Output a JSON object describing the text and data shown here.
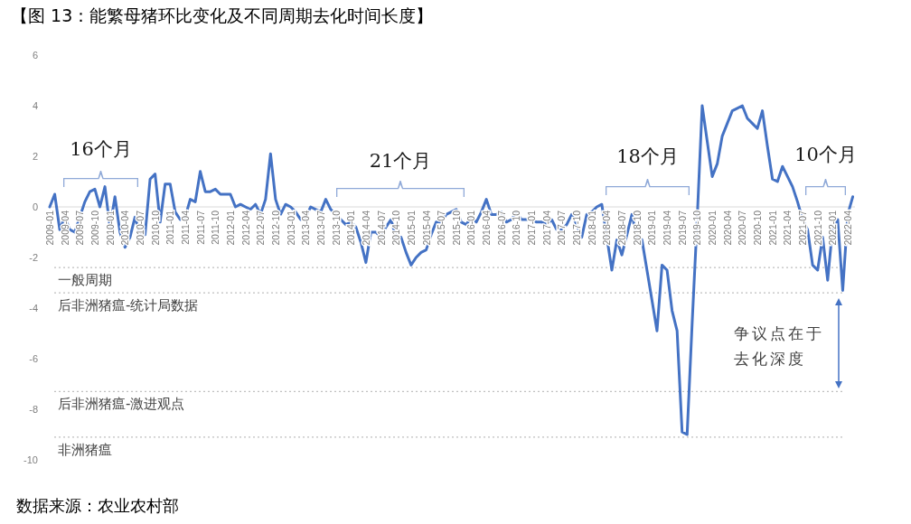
{
  "chart_data": {
    "type": "line",
    "title": "【图 13：能繁母猪环比变化及不同周期去化时间长度】",
    "categories": [
      "2009-01",
      null,
      null,
      "2009-04",
      null,
      null,
      "2009-07",
      null,
      null,
      "2009-10",
      null,
      null,
      "2010-01",
      null,
      null,
      "2010-04",
      null,
      null,
      "2010-07",
      null,
      null,
      "2010-10",
      null,
      null,
      "2011-01",
      null,
      null,
      "2011-04",
      null,
      null,
      "2011-07",
      null,
      null,
      "2011-10",
      null,
      null,
      "2012-01",
      null,
      null,
      "2012-04",
      null,
      null,
      "2012-07",
      null,
      null,
      "2012-10",
      null,
      null,
      "2013-01",
      null,
      null,
      "2013-04",
      null,
      null,
      "2013-07",
      null,
      null,
      "2013-10",
      null,
      null,
      "2014-01",
      null,
      null,
      "2014-04",
      null,
      null,
      "2014-07",
      null,
      null,
      "2014-10",
      null,
      null,
      "2015-01",
      null,
      null,
      "2015-04",
      null,
      null,
      "2015-07",
      null,
      null,
      "2015-10",
      null,
      null,
      "2016-01",
      null,
      null,
      "2016-04",
      null,
      null,
      "2016-07",
      null,
      null,
      "2016-10",
      null,
      null,
      "2017-01",
      null,
      null,
      "2017-04",
      null,
      null,
      "2017-07",
      null,
      null,
      "2017-10",
      null,
      null,
      "2018-01",
      null,
      null,
      "2018-04",
      null,
      null,
      "2018-07",
      null,
      null,
      "2018-10",
      null,
      null,
      "2019-01",
      null,
      null,
      "2019-04",
      null,
      null,
      "2019-07",
      null,
      null,
      "2019-10",
      null,
      null,
      "2020-01",
      null,
      null,
      "2020-04",
      null,
      null,
      "2020-07",
      null,
      null,
      "2020-10",
      null,
      null,
      "2021-01",
      null,
      null,
      "2021-04",
      null,
      null,
      "2021-07",
      null,
      null,
      "2021-10",
      null,
      null,
      "2022-01",
      null,
      null,
      "2022-04",
      null
    ],
    "series": [
      {
        "color": "#4472c4",
        "values": [
          0,
          0.5,
          -0.9,
          -0.4,
          -0.9,
          -1.0,
          -0.4,
          0.2,
          0.6,
          0.7,
          0,
          0.8,
          -0.8,
          0.4,
          -1.0,
          -1.6,
          -1.2,
          -0.4,
          -1.1,
          -1.1,
          1.1,
          1.3,
          -0.6,
          0.9,
          0.9,
          -0.2,
          -0.5,
          -0.4,
          0.3,
          0.2,
          1.4,
          0.6,
          0.6,
          0.7,
          0.5,
          0.5,
          0.5,
          0,
          0.1,
          0,
          -0.1,
          0.1,
          -0.3,
          0.3,
          2.1,
          0.3,
          -0.3,
          0.1,
          0,
          -0.2,
          -0.5,
          -0.4,
          0,
          -0.1,
          -0.2,
          0.3,
          -0.1,
          -0.3,
          -0.5,
          -0.7,
          -0.6,
          -0.8,
          -1.4,
          -2.2,
          -1.0,
          -1.0,
          -1.2,
          -0.8,
          -0.5,
          -1.2,
          -1.2,
          -1.8,
          -2.3,
          -2.0,
          -1.8,
          -1.7,
          -1.1,
          -0.6,
          -0.6,
          -0.3,
          -0.2,
          -0.1,
          -0.6,
          -0.7,
          -0.4,
          -0.6,
          -0.2,
          0.3,
          -0.3,
          -0.3,
          -0.2,
          -0.6,
          -0.5,
          -0.2,
          -0.5,
          -0.5,
          -0.5,
          -0.6,
          -0.6,
          -0.7,
          -0.5,
          -0.9,
          -0.9,
          -0.7,
          -0.3,
          -0.7,
          -1.2,
          -0.3,
          -0.2,
          0,
          0.1,
          -1.2,
          -2.5,
          -1.3,
          -1.9,
          -1.1,
          -0.3,
          -1.2,
          -1.3,
          -2.5,
          -3.7,
          -4.9,
          -2.3,
          -2.5,
          -4.1,
          -4.9,
          -8.9,
          -9.0,
          -4.6,
          -0.5,
          4.0,
          2.6,
          1.2,
          1.7,
          2.8,
          3.3,
          3.8,
          3.9,
          4.0,
          3.5,
          3.3,
          3.1,
          3.8,
          2.4,
          1.1,
          1.0,
          1.6,
          1.2,
          0.8,
          0.2,
          -0.5,
          -0.9,
          -2.3,
          -2.5,
          -1.2,
          -2.9,
          -0.8,
          -0.5,
          -3.3,
          -0.3,
          0.4
        ]
      }
    ],
    "ylim": [
      -10,
      6
    ],
    "yticks": [
      -10,
      -8,
      -6,
      -4,
      -2,
      0,
      2,
      4,
      6
    ],
    "marker": "none",
    "line_style": "solid",
    "ref_lines": [
      {
        "axis": "y",
        "value": -2.4,
        "label": "一般周期",
        "color": "#bfbfbf",
        "line_style": "dotted"
      },
      {
        "axis": "y",
        "value": -3.4,
        "label": "后非洲猪瘟-统计局数据",
        "color": "#bfbfbf",
        "line_style": "dotted"
      },
      {
        "axis": "y",
        "value": -7.3,
        "label": "后非洲猪瘟-激进观点",
        "color": "#bfbfbf",
        "line_style": "dotted"
      },
      {
        "axis": "y",
        "value": -9.1,
        "label": "非洲猪瘟",
        "color": "#bfbfbf",
        "line_style": "dotted"
      }
    ],
    "annotations": [
      "16个月",
      "21个月",
      "18个月",
      "10个月",
      "争议点在于去化深度",
      "数据来源：农业农村部"
    ]
  }
}
